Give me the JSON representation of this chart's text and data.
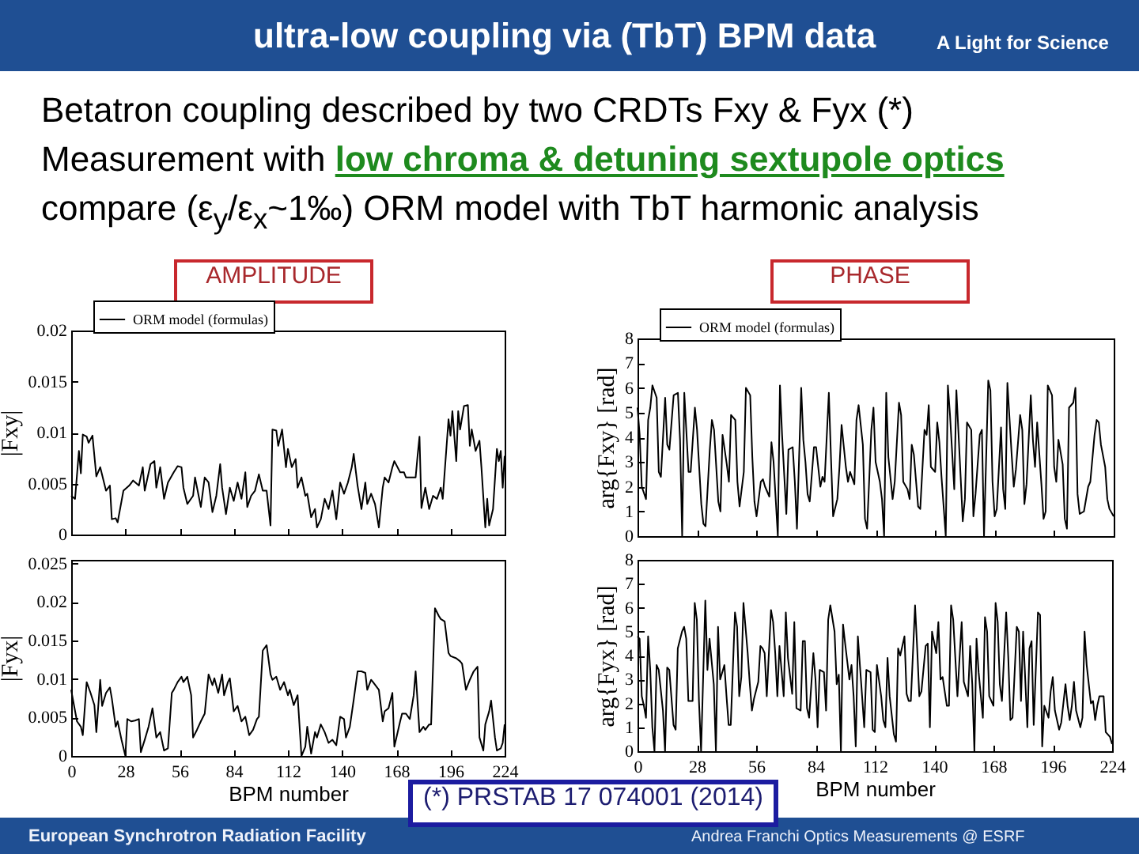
{
  "chart_data": [
    {
      "type": "other",
      "title": "ultra-low coupling via (TbT) BPM data",
      "annotations": [
        "Betatron coupling described by two CRDTs Fxy & Fyx (*)",
        "Measurement with",
        "low chroma & detuning sextupole optics",
        "compare (ε$_{y}$/ε$_{x}$~1‰) ORM model with TbT harmonic analysis",
        "AMPLITUDE",
        "PHASE",
        "A Light for Science",
        "(*) PRSTAB 17 074001 (2014)",
        "European Synchrotron Radiation Facility",
        "Andrea Franchi Optics Measurements  @ ESRF"
      ]
    },
    {
      "type": "line",
      "ylabel": "|Fxy|",
      "xlim": [
        0,
        224
      ],
      "xticks": [
        0,
        28,
        56,
        84,
        112,
        140,
        168,
        196,
        224
      ],
      "ylim": [
        0,
        0.02
      ],
      "yticks": [
        0,
        0.005,
        0.01,
        0.015,
        0.02
      ],
      "tick_labels": "y",
      "legend": "top left",
      "series": [
        {
          "name": "ORM model (formulas)",
          "color": "#000000",
          "x": [
            0,
            2,
            4,
            5,
            6,
            8,
            9,
            11,
            13,
            15,
            18,
            20,
            21,
            23,
            24,
            27,
            30,
            32,
            35,
            37,
            38,
            41,
            43,
            44,
            46,
            48,
            50,
            53,
            55,
            57,
            58,
            60,
            63,
            64,
            67,
            69,
            71,
            73,
            75,
            77,
            78,
            80,
            82,
            84,
            86,
            88,
            90,
            91,
            93,
            95,
            97,
            99,
            101,
            103,
            104,
            106,
            107,
            109,
            111,
            112,
            114,
            116,
            117,
            119,
            121,
            122,
            124,
            126,
            127,
            129,
            131,
            133,
            135,
            137,
            139,
            141,
            143,
            145,
            146,
            148,
            150,
            152,
            153,
            155,
            157,
            159,
            161,
            162,
            164,
            166,
            167,
            170,
            172,
            173,
            176,
            178,
            179,
            180,
            181,
            183,
            185,
            187,
            189,
            191,
            192,
            195,
            196,
            197,
            199,
            200,
            201,
            203,
            205,
            206,
            207,
            209,
            211,
            212,
            214,
            215,
            216,
            218,
            220,
            221,
            222,
            223,
            224
          ],
          "values": [
            0.0038,
            0.0035,
            0.0082,
            0.006,
            0.0098,
            0.0096,
            0.009,
            0.0097,
            0.0057,
            0.0066,
            0.0043,
            0.0048,
            0.0015,
            0.0016,
            0.0012,
            0.0043,
            0.0048,
            0.0053,
            0.0048,
            0.0066,
            0.0043,
            0.0069,
            0.0072,
            0.0046,
            0.0066,
            0.0035,
            0.0051,
            0.0061,
            0.0067,
            0.0066,
            0.0046,
            0.003,
            0.0038,
            0.0056,
            0.0027,
            0.0056,
            0.0051,
            0.0022,
            0.0038,
            0.0069,
            0.0046,
            0.002,
            0.0046,
            0.0033,
            0.0051,
            0.0035,
            0.0061,
            0.0027,
            0.0038,
            0.0043,
            0.0059,
            0.0043,
            0.0043,
            0.0009,
            0.0103,
            0.0102,
            0.0087,
            0.0103,
            0.0066,
            0.0084,
            0.0066,
            0.0074,
            0.0046,
            0.0056,
            0.0038,
            0.004,
            0.0017,
            0.0025,
            0.0007,
            0.0015,
            0.0035,
            0.0025,
            0.0043,
            0.0015,
            0.0051,
            0.004,
            0.0051,
            0.0066,
            0.0079,
            0.0048,
            0.0025,
            0.0051,
            0.003,
            0.004,
            0.003,
            0.0007,
            0.0046,
            0.0056,
            0.0051,
            0.0066,
            0.0072,
            0.0061,
            0.0061,
            0.0056,
            0.0056,
            0.0056,
            0.0077,
            0.0096,
            0.0026,
            0.0046,
            0.0025,
            0.0038,
            0.0035,
            0.0046,
            0.0035,
            0.0113,
            0.0097,
            0.0121,
            0.0072,
            0.0121,
            0.0103,
            0.0126,
            0.0127,
            0.0087,
            0.0103,
            0.0082,
            0.0092,
            0.0066,
            0.0007,
            0.0035,
            0.0009,
            0.0025,
            0.0084,
            0.0072,
            0.0082,
            0.0046,
            0.0077
          ]
        }
      ]
    },
    {
      "type": "line",
      "ylabel": "arg{Fxy}  [rad]",
      "xlim": [
        0,
        224
      ],
      "xticks": [
        0,
        28,
        56,
        84,
        112,
        140,
        168,
        196,
        224
      ],
      "ylim": [
        0,
        8
      ],
      "yticks": [
        0,
        1,
        2,
        3,
        4,
        5,
        6,
        7,
        8
      ],
      "tick_labels": "y",
      "legend": "top left",
      "series": [
        {
          "name": "ORM model (formulas)",
          "color": "#000000",
          "x": [
            0,
            1,
            2,
            4,
            5,
            6,
            7,
            9,
            10,
            11,
            13,
            14,
            15,
            17,
            19,
            20,
            21,
            22,
            24,
            25,
            27,
            28,
            30,
            31,
            32,
            34,
            35,
            36,
            38,
            39,
            40,
            42,
            43,
            44,
            46,
            47,
            48,
            50,
            51,
            53,
            54,
            55,
            56,
            58,
            59,
            60,
            62,
            63,
            64,
            66,
            67,
            68,
            70,
            71,
            73,
            74,
            75,
            77,
            78,
            79,
            80,
            81,
            83,
            84,
            86,
            87,
            88,
            90,
            91,
            92,
            94,
            95,
            96,
            98,
            99,
            100,
            102,
            103,
            104,
            106,
            107,
            108,
            110,
            111,
            112,
            114,
            115,
            116,
            117,
            118,
            120,
            121,
            123,
            124,
            125,
            127,
            128,
            129,
            130,
            132,
            133,
            135,
            136,
            137,
            138,
            140,
            141,
            142,
            143,
            145,
            146,
            147,
            149,
            150,
            152,
            153,
            154,
            155,
            157,
            158,
            159,
            161,
            162,
            163,
            165,
            166,
            167,
            168,
            169,
            171,
            172,
            173,
            174,
            176,
            177,
            178,
            180,
            181,
            182,
            183,
            185,
            186,
            187,
            188,
            190,
            191,
            192,
            193,
            195,
            196,
            197,
            198,
            200,
            201,
            202,
            203,
            205,
            206,
            207,
            208,
            210,
            212,
            213,
            215,
            216,
            217,
            218,
            220,
            221,
            222,
            224
          ],
          "values": [
            5.2,
            4.1,
            2.0,
            1.5,
            4.7,
            5.2,
            6.1,
            5.6,
            2.6,
            2.4,
            5.6,
            3.7,
            3.5,
            5.7,
            5.8,
            3.9,
            0,
            5.8,
            2.6,
            2.6,
            5.2,
            4.3,
            1.3,
            0.5,
            0.4,
            3.5,
            4.7,
            4.3,
            1.4,
            1.0,
            4.1,
            2.9,
            2.2,
            4.9,
            4.7,
            2.2,
            1.2,
            2.6,
            6.0,
            5.7,
            3.2,
            1.4,
            0.8,
            2.2,
            2.3,
            2.0,
            1.6,
            3.8,
            3.0,
            0,
            6.1,
            4.1,
            0.9,
            3.5,
            3.6,
            2.2,
            0.3,
            6.0,
            3.9,
            3.0,
            1.7,
            1.4,
            3.6,
            3.6,
            2.0,
            2.4,
            2.2,
            5.8,
            3.2,
            0.8,
            1.5,
            2.8,
            4.5,
            2.8,
            2.2,
            2.6,
            2.1,
            4.7,
            5.3,
            3.7,
            0.7,
            0.3,
            4.3,
            5.2,
            3.0,
            2.2,
            1.5,
            0,
            5.8,
            3.2,
            1.5,
            2.2,
            5.4,
            4.9,
            2.2,
            1.9,
            1.5,
            3.7,
            3.3,
            1.2,
            1.1,
            4.3,
            4.1,
            5.3,
            2.8,
            2.6,
            4.6,
            3.8,
            2.4,
            0,
            6.1,
            4.9,
            1.9,
            5.9,
            2.4,
            0.6,
            1.5,
            4.6,
            4.3,
            0.8,
            1.7,
            4.1,
            4.3,
            0,
            6.3,
            5.9,
            2.2,
            0.8,
            1.1,
            4.4,
            1.9,
            1.1,
            6.2,
            3.3,
            2.0,
            2.7,
            4.9,
            4.3,
            1.3,
            2.1,
            5.7,
            3.9,
            2.8,
            4.6,
            2.1,
            0.7,
            1.0,
            6.1,
            5.7,
            2.8,
            2.2,
            3.9,
            2.9,
            0.7,
            0.3,
            5.2,
            5.4,
            6.0,
            1.7,
            0.9,
            1.0,
            2.0,
            2.2,
            4.1,
            4.7,
            4.6,
            3.7,
            2.8,
            1.5,
            1.1,
            0.8
          ]
        }
      ]
    },
    {
      "type": "line",
      "ylabel": "|Fyx|",
      "xlabel": "BPM number",
      "xlim": [
        0,
        224
      ],
      "xticks": [
        0,
        28,
        56,
        84,
        112,
        140,
        168,
        196,
        224
      ],
      "ylim": [
        0,
        0.0255
      ],
      "yticks": [
        0,
        0.005,
        0.01,
        0.015,
        0.02,
        0.025
      ],
      "series": [
        {
          "color": "#000000",
          "x": [
            0,
            1,
            3,
            5,
            6,
            8,
            10,
            12,
            13,
            15,
            16,
            18,
            20,
            21,
            23,
            24,
            26,
            28,
            29,
            31,
            33,
            35,
            36,
            38,
            40,
            42,
            44,
            46,
            48,
            50,
            52,
            53,
            55,
            57,
            58,
            60,
            62,
            63,
            65,
            67,
            69,
            71,
            73,
            74,
            76,
            78,
            79,
            81,
            82,
            84,
            86,
            88,
            90,
            92,
            94,
            96,
            97,
            99,
            101,
            103,
            104,
            106,
            108,
            110,
            112,
            113,
            115,
            117,
            119,
            121,
            122,
            124,
            126,
            127,
            129,
            131,
            133,
            135,
            137,
            139,
            141,
            142,
            144,
            146,
            148,
            150,
            152,
            153,
            155,
            156,
            159,
            161,
            162,
            164,
            166,
            167,
            170,
            171,
            173,
            175,
            177,
            178,
            180,
            182,
            183,
            185,
            186,
            188,
            190,
            191,
            193,
            195,
            196,
            199,
            201,
            202,
            204,
            206,
            208,
            210,
            211,
            213,
            214,
            216,
            217,
            219,
            220,
            222,
            223,
            224
          ],
          "values": [
            0.0086,
            0.0072,
            0.0045,
            0.0038,
            0.0027,
            0.0096,
            0.0082,
            0.0066,
            0.0031,
            0.0099,
            0.0065,
            0.0082,
            0.0089,
            0.0075,
            0.0038,
            0.0045,
            0.0021,
            0,
            0.0048,
            0.0045,
            0.0046,
            0.0048,
            0.0005,
            0.0021,
            0.0038,
            0.0062,
            0.0024,
            0.0031,
            0.0007,
            0.001,
            0.0082,
            0.0086,
            0.0096,
            0.0103,
            0.0096,
            0.0103,
            0.0079,
            0.0024,
            0.0034,
            0.0045,
            0.0055,
            0.0106,
            0.0092,
            0.0101,
            0.0082,
            0.0106,
            0.0079,
            0.0096,
            0.0101,
            0.0058,
            0.0065,
            0.0045,
            0.0051,
            0.0027,
            0.0034,
            0.0048,
            0.0051,
            0.0137,
            0.0144,
            0.0106,
            0.0099,
            0.0103,
            0.0086,
            0.0096,
            0.0079,
            0.0086,
            0.0066,
            0.0079,
            0,
            0.0012,
            0.0038,
            0.0003,
            0.0031,
            0.0024,
            0.0041,
            0.0031,
            0.0017,
            0.0021,
            0.0014,
            0.0051,
            0.0048,
            0.0024,
            0.0038,
            0.0073,
            0.011,
            0.011,
            0.0108,
            0.0086,
            0.0099,
            0.0096,
            0.0086,
            0.0045,
            0.0058,
            0.0062,
            0.0082,
            0.0012,
            0.0045,
            0.0055,
            0.0055,
            0.0048,
            0.0079,
            0.011,
            0.0031,
            0.0038,
            0.0034,
            0.0041,
            0.0041,
            0.0192,
            0.0182,
            0.0178,
            0.0175,
            0.0134,
            0.013,
            0.0127,
            0.0123,
            0.012,
            0.0086,
            0.0099,
            0.011,
            0.0116,
            0.0024,
            0.0007,
            0.0041,
            0.0058,
            0.0072,
            0.0024,
            0.0007,
            0.001,
            0.0017,
            0.0041
          ]
        }
      ]
    },
    {
      "type": "line",
      "ylabel": "arg{Fyx}  [rad]",
      "xlabel": "BPM number",
      "xlim": [
        0,
        224
      ],
      "xticks": [
        0,
        28,
        56,
        84,
        112,
        140,
        168,
        196,
        224
      ],
      "ylim": [
        0,
        8
      ],
      "yticks": [
        0,
        1,
        2,
        3,
        4,
        5,
        6,
        7,
        8
      ],
      "series": [
        {
          "color": "#000000",
          "x": [
            0,
            1,
            2,
            3,
            4,
            5,
            6,
            7,
            8,
            9,
            10,
            12,
            13,
            14,
            15,
            17,
            18,
            19,
            21,
            22,
            23,
            24,
            26,
            27,
            28,
            29,
            30,
            32,
            33,
            34,
            36,
            37,
            38,
            39,
            41,
            42,
            43,
            44,
            46,
            47,
            48,
            49,
            50,
            52,
            53,
            54,
            55,
            57,
            58,
            59,
            60,
            61,
            63,
            64,
            65,
            66,
            67,
            69,
            70,
            71,
            73,
            74,
            75,
            77,
            78,
            79,
            80,
            81,
            83,
            84,
            85,
            86,
            88,
            89,
            90,
            91,
            93,
            94,
            95,
            96,
            97,
            98,
            100,
            101,
            102,
            103,
            104,
            106,
            107,
            108,
            110,
            111,
            112,
            113,
            115,
            116,
            117,
            118,
            119,
            121,
            122,
            123,
            124,
            126,
            127,
            128,
            129,
            131,
            132,
            133,
            134,
            136,
            137,
            138,
            139,
            141,
            142,
            143,
            144,
            146,
            147,
            148,
            149,
            151,
            152,
            153,
            154,
            156,
            157,
            158,
            159,
            160,
            161,
            163,
            164,
            165,
            166,
            168,
            169,
            170,
            171,
            172,
            174,
            175,
            176,
            177,
            179,
            180,
            181,
            182,
            184,
            185,
            186,
            187,
            189,
            190,
            191,
            192,
            194,
            195,
            196,
            197,
            199,
            200,
            202,
            203,
            204,
            205,
            206,
            207,
            209,
            210,
            211,
            212,
            214,
            215,
            216,
            217,
            218,
            220,
            221,
            223,
            224
          ],
          "values": [
            4.8,
            4.7,
            2.3,
            1.9,
            1.4,
            4.8,
            3.4,
            1.0,
            0,
            3.6,
            3.4,
            1.7,
            0,
            3.5,
            3.4,
            1.1,
            0.9,
            4.3,
            5.0,
            5.2,
            4.7,
            2.1,
            2.1,
            6.2,
            5.5,
            2.1,
            0,
            6.3,
            3.4,
            4.7,
            2.8,
            0,
            5.2,
            3.0,
            3.6,
            2.3,
            1.1,
            1.1,
            5.8,
            5.2,
            2.3,
            3.1,
            6.2,
            4.1,
            2.8,
            1.7,
            2.2,
            2.9,
            4.4,
            4.3,
            4.1,
            2.3,
            5.9,
            5.4,
            4.1,
            2.3,
            4.4,
            2.3,
            5.8,
            3.9,
            2.4,
            5.4,
            1.8,
            1.7,
            4.6,
            4.6,
            1.8,
            1.4,
            4.1,
            3.0,
            1.0,
            3.4,
            3.3,
            1.7,
            5.5,
            6.1,
            5.0,
            2.8,
            3.2,
            0,
            5.3,
            4.5,
            3.0,
            3.6,
            2.3,
            0.2,
            4.8,
            2.3,
            1.0,
            3.4,
            3.3,
            0.9,
            0.8,
            3.6,
            2.3,
            1.3,
            1.0,
            3.9,
            2.3,
            0.7,
            0.4,
            4.3,
            4.0,
            4.8,
            2.4,
            2.1,
            2.1,
            6.1,
            4.3,
            2.3,
            2.5,
            4.4,
            4.5,
            1.0,
            5.0,
            4.1,
            5.4,
            3.0,
            3.1,
            1.9,
            1.9,
            6.1,
            5.5,
            2.3,
            3.9,
            5.4,
            2.9,
            2.3,
            4.4,
            2.8,
            0,
            4.7,
            3.3,
            1.4,
            5.6,
            5.0,
            2.3,
            1.9,
            6.2,
            5.4,
            2.8,
            2.1,
            5.8,
            3.9,
            1.3,
            1.4,
            5.2,
            5.0,
            2.1,
            5.0,
            1.0,
            4.3,
            4.6,
            1.1,
            5.8,
            5.7,
            0.2,
            1.9,
            1.4,
            2.5,
            3.1,
            1.7,
            0.9,
            1.2,
            2.8,
            1.9,
            1.3,
            1.9,
            2.9,
            1.7,
            1.0,
            1.4,
            5.0,
            3.6,
            2.0,
            2.1,
            1.3,
            1.9,
            2.3,
            2.3,
            0.8,
            0.6,
            0.3
          ]
        }
      ]
    }
  ]
}
